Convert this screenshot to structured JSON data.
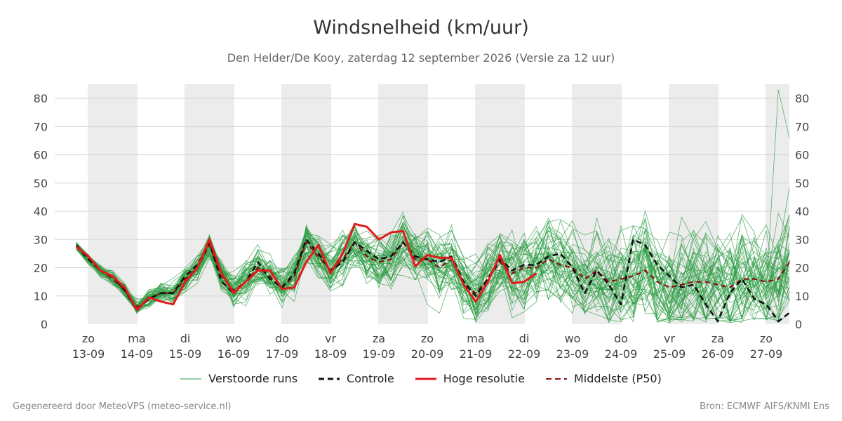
{
  "title": "Windsnelheid (km/uur)",
  "subtitle": "Den Helder/De Kooy, zaterdag 12 september 2026 (Versie za 12 uur)",
  "footer": {
    "left": "Gegenereerd door MeteoVPS (meteo-service.nl)",
    "right": "Bron: ECMWF AIFS/KNMI Ens"
  },
  "legend": [
    {
      "label": "Verstoorde runs",
      "color": "#2e9e44",
      "style": "thin"
    },
    {
      "label": "Controle",
      "color": "#111111",
      "style": "dashed"
    },
    {
      "label": "Hoge resolutie",
      "color": "#e31a1c",
      "style": "solid"
    },
    {
      "label": "Middelste (P50)",
      "color": "#8b1010",
      "style": "dashed"
    }
  ],
  "chart_data": {
    "type": "line",
    "x_start_day_fraction": -0.25,
    "x_step_days": 0.25,
    "ylim": [
      0,
      85
    ],
    "yticks": [
      0,
      10,
      20,
      30,
      40,
      50,
      60,
      70,
      80
    ],
    "days": [
      {
        "name": "zo",
        "date": "13-09",
        "shaded": true
      },
      {
        "name": "ma",
        "date": "14-09",
        "shaded": false
      },
      {
        "name": "di",
        "date": "15-09",
        "shaded": true
      },
      {
        "name": "wo",
        "date": "16-09",
        "shaded": false
      },
      {
        "name": "do",
        "date": "17-09",
        "shaded": true
      },
      {
        "name": "vr",
        "date": "18-09",
        "shaded": false
      },
      {
        "name": "za",
        "date": "19-09",
        "shaded": true
      },
      {
        "name": "zo",
        "date": "20-09",
        "shaded": false
      },
      {
        "name": "ma",
        "date": "21-09",
        "shaded": true
      },
      {
        "name": "di",
        "date": "22-09",
        "shaded": false
      },
      {
        "name": "wo",
        "date": "23-09",
        "shaded": true
      },
      {
        "name": "do",
        "date": "24-09",
        "shaded": false
      },
      {
        "name": "vr",
        "date": "25-09",
        "shaded": true
      },
      {
        "name": "za",
        "date": "26-09",
        "shaded": false
      },
      {
        "name": "zo",
        "date": "27-09",
        "shaded": true
      }
    ],
    "series": [
      {
        "name": "Hoge resolutie",
        "color": "#e31a1c",
        "values": [
          27.5,
          24,
          19,
          17,
          13,
          5,
          9.5,
          8,
          7,
          15,
          20,
          30,
          18,
          11,
          15,
          19,
          19,
          12.5,
          13,
          22,
          28,
          18,
          25,
          35.5,
          34.5,
          30,
          32.5,
          33,
          20.5,
          24.5,
          23.5,
          23.5,
          14,
          8,
          15,
          24.5,
          14.5,
          15,
          18
        ]
      },
      {
        "name": "Controle",
        "color": "#111111",
        "values": [
          28,
          23,
          19,
          17,
          12,
          5,
          9,
          11,
          11,
          17,
          21,
          29,
          15,
          11,
          15,
          22,
          16,
          13,
          18,
          30,
          25,
          19,
          22,
          29,
          26,
          23,
          24,
          29,
          24,
          23,
          22,
          24,
          15,
          10,
          16,
          23,
          19,
          21,
          21,
          24,
          25,
          20,
          11,
          19,
          14,
          7,
          30,
          28,
          21,
          17,
          13,
          14,
          7,
          1,
          11,
          16,
          9,
          7,
          1,
          4
        ]
      },
      {
        "name": "Middelste (P50)",
        "color": "#8b1010",
        "values": [
          27.5,
          23,
          19,
          16,
          12,
          6,
          9,
          11,
          11,
          16,
          20,
          28,
          17,
          12,
          15,
          20,
          17,
          13,
          17,
          29,
          24,
          19,
          23,
          29,
          24,
          22,
          23,
          29,
          23,
          23,
          20,
          23,
          14,
          11,
          16,
          22,
          18,
          20,
          20,
          23,
          21,
          20,
          16,
          19,
          15,
          16,
          17,
          19,
          15,
          13,
          14,
          15,
          15,
          14,
          13,
          16,
          16,
          15,
          16,
          22
        ]
      }
    ],
    "ensemble": {
      "name": "Verstoorde runs",
      "color": "#2e9e44",
      "members": 50,
      "visible_max": 83
    }
  }
}
